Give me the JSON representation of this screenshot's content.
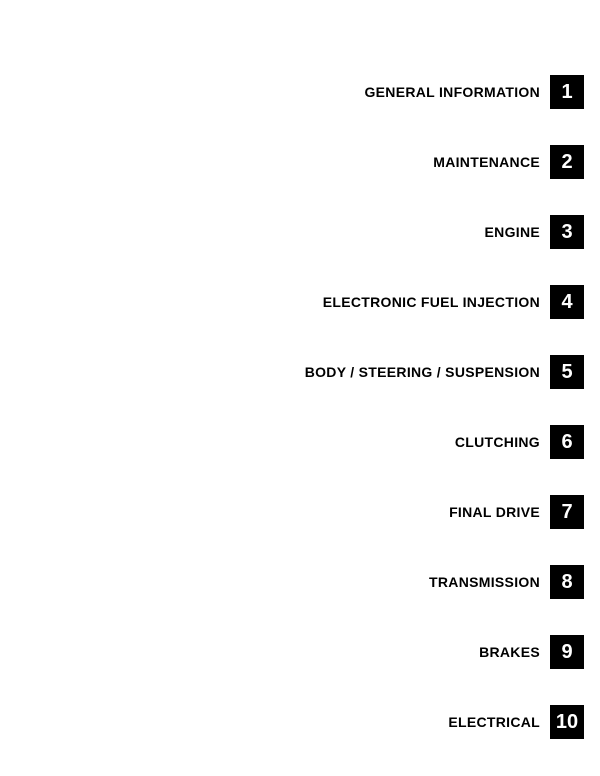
{
  "background_color": "#ffffff",
  "tab_bg_color": "#000000",
  "tab_text_color": "#ffffff",
  "label_color": "#000000",
  "toc": [
    {
      "label": "GENERAL INFORMATION",
      "number": "1"
    },
    {
      "label": "MAINTENANCE",
      "number": "2"
    },
    {
      "label": "ENGINE",
      "number": "3"
    },
    {
      "label": "ELECTRONIC FUEL INJECTION",
      "number": "4"
    },
    {
      "label": "BODY / STEERING / SUSPENSION",
      "number": "5"
    },
    {
      "label": "CLUTCHING",
      "number": "6"
    },
    {
      "label": "FINAL DRIVE",
      "number": "7"
    },
    {
      "label": "TRANSMISSION",
      "number": "8"
    },
    {
      "label": "BRAKES",
      "number": "9"
    },
    {
      "label": "ELECTRICAL",
      "number": "10"
    }
  ]
}
